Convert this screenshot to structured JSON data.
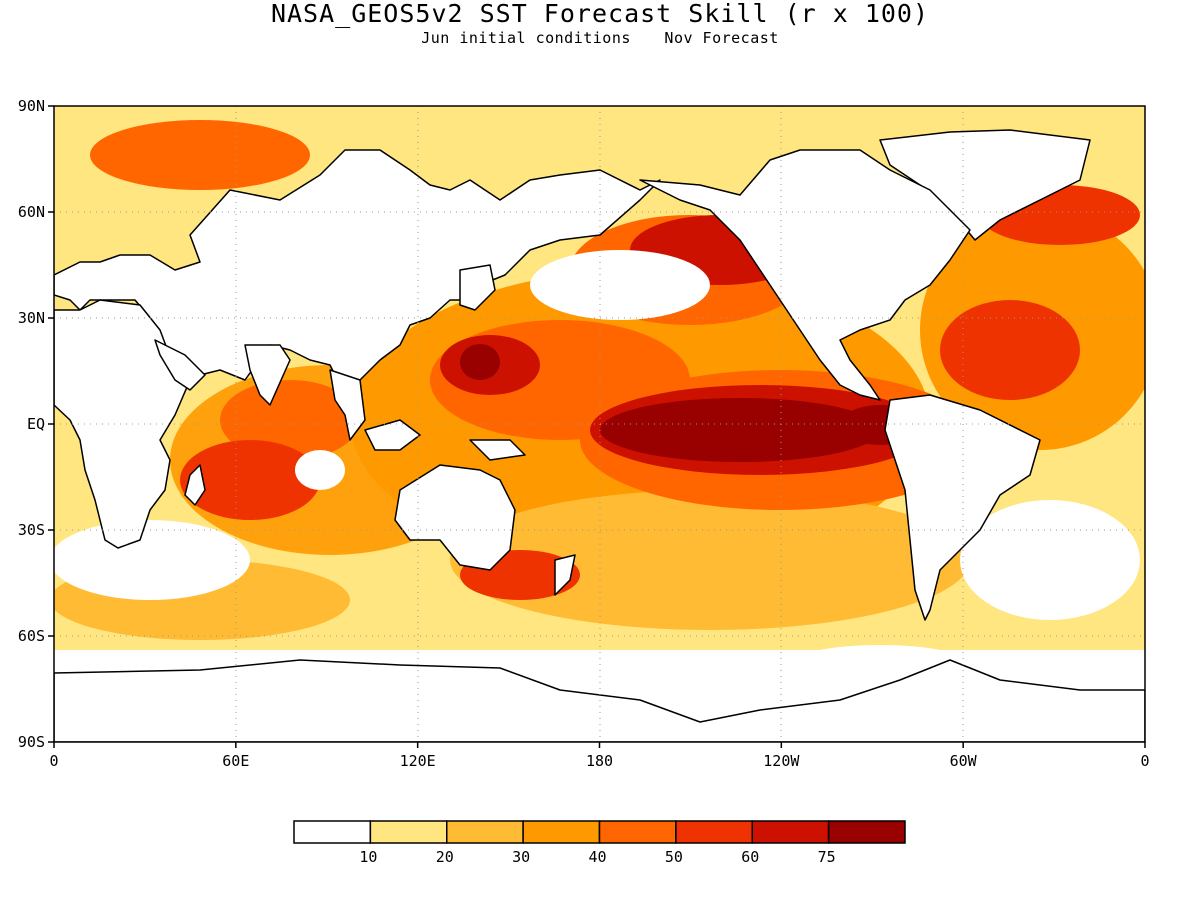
{
  "title": "NASA_GEOS5v2 SST Forecast Skill (r x 100)",
  "subtitle": {
    "initial": "Jun initial conditions",
    "forecast": "Nov Forecast"
  },
  "lat_ticks": [
    "90N",
    "60N",
    "30N",
    "EQ",
    "30S",
    "60S",
    "90S"
  ],
  "lon_ticks": [
    "0",
    "60E",
    "120E",
    "180",
    "120W",
    "60W",
    "0"
  ],
  "colorbar": {
    "colors": [
      "#ffffff",
      "#ffe680",
      "#ffbb33",
      "#ff9900",
      "#ff6600",
      "#ee3300",
      "#cc1100",
      "#990000"
    ],
    "labels": [
      "10",
      "20",
      "30",
      "40",
      "50",
      "60",
      "75"
    ]
  },
  "colors": {
    "land": "#ffffff",
    "coast": "#000000",
    "grid": "#9a9a9a"
  }
}
